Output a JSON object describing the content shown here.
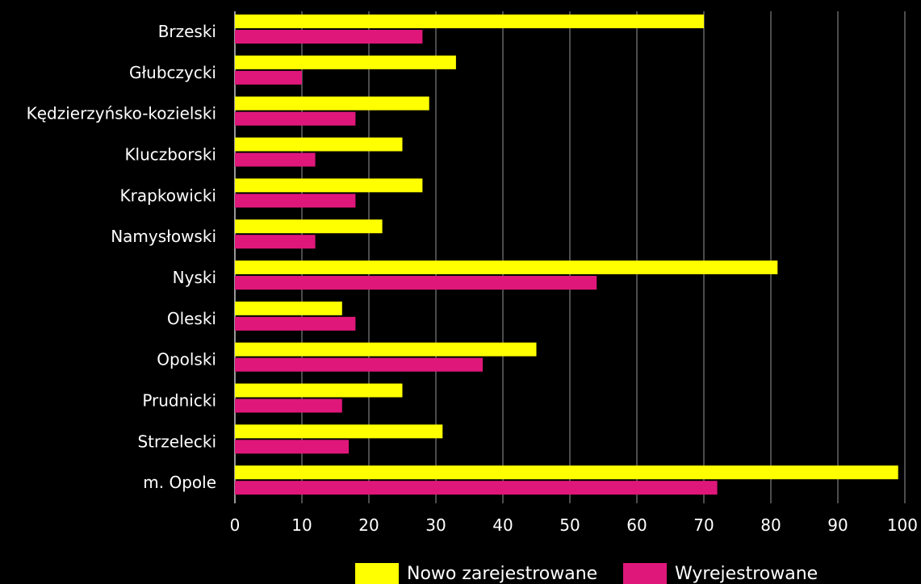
{
  "chart_data": {
    "type": "bar",
    "orientation": "horizontal",
    "categories": [
      "Brzeski",
      "Głubczycki",
      "Kędzierzyńsko-kozielski",
      "Kluczborski",
      "Krapkowicki",
      "Namysłowski",
      "Nyski",
      "Oleski",
      "Opolski",
      "Prudnicki",
      "Strzelecki",
      "m. Opole"
    ],
    "series": [
      {
        "name": "Nowo zarejestrowane",
        "color": "#ffff00",
        "values": [
          70,
          33,
          29,
          25,
          28,
          22,
          81,
          16,
          45,
          25,
          31,
          99
        ]
      },
      {
        "name": "Wyrejestrowane",
        "color": "#e0177a",
        "values": [
          28,
          10,
          18,
          12,
          18,
          12,
          54,
          18,
          37,
          16,
          17,
          72
        ]
      }
    ],
    "xlim": [
      0,
      100
    ],
    "xticks": [
      0,
      10,
      20,
      30,
      40,
      50,
      60,
      70,
      80,
      90,
      100
    ],
    "grid": true,
    "legend_position": "bottom",
    "background": "#000000",
    "text_color": "#ffffff",
    "grid_color": "#ffffff"
  }
}
